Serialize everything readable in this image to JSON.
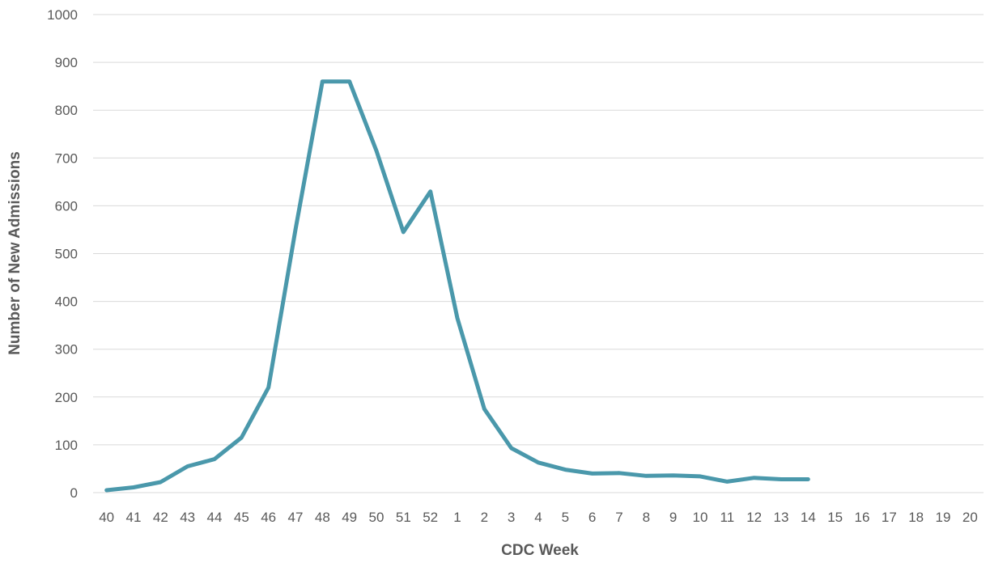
{
  "chart_data": {
    "type": "line",
    "title": "",
    "xlabel": "CDC Week",
    "ylabel": "Number of New Admissions",
    "ylim": [
      0,
      1000
    ],
    "yticks": [
      0,
      100,
      200,
      300,
      400,
      500,
      600,
      700,
      800,
      900,
      1000
    ],
    "grid": true,
    "legend": "none",
    "line_color": "#4a98ab",
    "categories": [
      "40",
      "41",
      "42",
      "43",
      "44",
      "45",
      "46",
      "47",
      "48",
      "49",
      "50",
      "51",
      "52",
      "1",
      "2",
      "3",
      "4",
      "5",
      "6",
      "7",
      "8",
      "9",
      "10",
      "11",
      "12",
      "13",
      "14",
      "15",
      "16",
      "17",
      "18",
      "19",
      "20"
    ],
    "series": [
      {
        "values": [
          5,
          11,
          22,
          55,
          70,
          115,
          220,
          550,
          860,
          860,
          715,
          545,
          630,
          365,
          175,
          93,
          63,
          48,
          40,
          41,
          35,
          36,
          34,
          23,
          31,
          28,
          28,
          null,
          null,
          null,
          null,
          null,
          null
        ]
      }
    ]
  }
}
